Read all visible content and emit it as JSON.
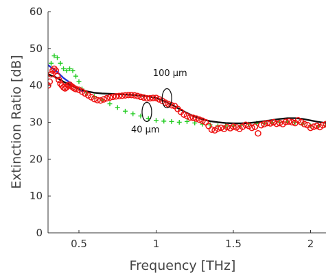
{
  "chart_data": {
    "type": "scatter",
    "title": "",
    "xlabel": "Frequency [THz]",
    "ylabel": "Extinction Ratio [dB]",
    "xlim": [
      0.3,
      2.1
    ],
    "ylim": [
      0,
      60
    ],
    "x_ticks": [
      {
        "value": 0.5,
        "label": "0.5"
      },
      {
        "value": 1.0,
        "label": "1"
      },
      {
        "value": 1.5,
        "label": "1.5"
      },
      {
        "value": 2.0,
        "label": "2"
      }
    ],
    "y_ticks": [
      {
        "value": 0,
        "label": "0"
      },
      {
        "value": 10,
        "label": "10"
      },
      {
        "value": 20,
        "label": "20"
      },
      {
        "value": 30,
        "label": "30"
      },
      {
        "value": 40,
        "label": "40"
      },
      {
        "value": 50,
        "label": "50"
      },
      {
        "value": 60,
        "label": "60"
      }
    ],
    "grid": false,
    "series": [
      {
        "marker": "plus",
        "color": "#22cc22",
        "x": [
          0.3,
          0.32,
          0.34,
          0.36,
          0.38,
          0.4,
          0.42,
          0.44,
          0.46,
          0.48,
          0.5,
          0.52,
          0.55,
          0.6,
          0.65,
          0.7,
          0.75,
          0.8,
          0.85,
          0.9,
          0.95,
          1.0,
          1.05,
          1.1,
          1.15,
          1.2,
          1.25,
          1.3,
          1.35,
          1.4,
          1.45,
          1.5,
          1.55,
          1.6,
          1.65,
          1.7,
          1.75,
          1.8,
          1.85,
          1.9,
          1.95,
          2.0,
          2.05,
          2.1
        ],
        "y": [
          43.0,
          46.0,
          48.0,
          47.5,
          46.0,
          44.5,
          44.0,
          44.5,
          44.0,
          42.5,
          41.0,
          39.0,
          38.0,
          37.0,
          36.0,
          35.0,
          34.0,
          33.0,
          32.3,
          31.7,
          31.0,
          30.5,
          30.3,
          30.2,
          30.0,
          30.2,
          29.8,
          29.5,
          29.3,
          29.0,
          29.0,
          29.0,
          29.2,
          29.5,
          29.7,
          29.7,
          29.9,
          30.0,
          30.1,
          30.0,
          29.5,
          29.0,
          29.0,
          29.2
        ]
      },
      {
        "marker": "line",
        "color": "#2233dd",
        "x": [
          0.3,
          0.35,
          0.4,
          0.45,
          0.5,
          0.53
        ],
        "y": [
          45.5,
          44.0,
          42.0,
          40.5,
          39.0,
          38.2
        ]
      },
      {
        "marker": "line",
        "color": "#111111",
        "x": [
          0.3,
          0.35,
          0.4,
          0.45,
          0.5,
          0.55,
          0.6,
          0.65,
          0.7,
          0.75,
          0.8,
          0.85,
          0.9,
          0.95,
          1.0,
          1.05,
          1.1,
          1.15,
          1.2,
          1.25,
          1.3,
          1.35,
          1.4,
          1.45,
          1.5,
          1.55,
          1.6,
          1.65,
          1.7,
          1.75,
          1.8,
          1.85,
          1.9,
          1.95,
          2.0,
          2.05,
          2.1
        ],
        "y": [
          43.0,
          42.2,
          41.0,
          40.0,
          39.0,
          38.4,
          38.0,
          37.8,
          37.7,
          37.6,
          37.5,
          37.4,
          37.2,
          37.0,
          36.6,
          35.8,
          34.8,
          33.6,
          32.5,
          31.5,
          30.8,
          30.3,
          30.0,
          29.8,
          29.7,
          29.7,
          29.8,
          30.0,
          30.3,
          30.6,
          30.9,
          31.1,
          31.1,
          30.9,
          30.5,
          30.1,
          29.8
        ]
      },
      {
        "marker": "circle",
        "color": "#ee1111",
        "x": [
          0.3,
          0.31,
          0.32,
          0.33,
          0.34,
          0.35,
          0.36,
          0.37,
          0.38,
          0.39,
          0.4,
          0.41,
          0.42,
          0.43,
          0.44,
          0.45,
          0.46,
          0.47,
          0.48,
          0.5,
          0.52,
          0.54,
          0.56,
          0.58,
          0.6,
          0.62,
          0.64,
          0.66,
          0.68,
          0.7,
          0.72,
          0.74,
          0.76,
          0.78,
          0.8,
          0.82,
          0.84,
          0.86,
          0.88,
          0.9,
          0.92,
          0.94,
          0.96,
          0.98,
          1.0,
          1.02,
          1.04,
          1.06,
          1.08,
          1.1,
          1.12,
          1.14,
          1.16,
          1.18,
          1.2,
          1.22,
          1.24,
          1.26,
          1.28,
          1.3,
          1.32,
          1.34,
          1.36,
          1.38,
          1.4,
          1.42,
          1.44,
          1.46,
          1.48,
          1.5,
          1.52,
          1.54,
          1.56,
          1.58,
          1.6,
          1.62,
          1.64,
          1.66,
          1.68,
          1.7,
          1.72,
          1.74,
          1.76,
          1.78,
          1.8,
          1.82,
          1.84,
          1.86,
          1.88,
          1.9,
          1.92,
          1.94,
          1.96,
          1.98,
          2.0,
          2.02,
          2.04,
          2.06,
          2.08,
          2.1
        ],
        "y": [
          40.0,
          41.0,
          43.0,
          44.0,
          44.5,
          44.0,
          42.5,
          41.5,
          40.5,
          40.0,
          39.5,
          39.2,
          39.5,
          40.0,
          40.2,
          39.8,
          39.5,
          39.2,
          39.0,
          38.8,
          38.3,
          37.8,
          37.3,
          36.8,
          36.3,
          36.0,
          35.9,
          36.2,
          36.5,
          36.7,
          36.9,
          37.0,
          37.1,
          37.2,
          37.3,
          37.4,
          37.4,
          37.3,
          37.1,
          36.9,
          36.7,
          36.5,
          36.5,
          36.6,
          36.6,
          36.2,
          35.8,
          35.3,
          34.9,
          34.6,
          34.4,
          33.6,
          32.8,
          32.1,
          31.7,
          31.3,
          31.2,
          31.0,
          30.7,
          30.4,
          30.0,
          29.0,
          28.0,
          27.8,
          28.3,
          28.5,
          28.2,
          28.7,
          28.4,
          28.8,
          28.6,
          28.2,
          28.8,
          29.3,
          29.0,
          28.5,
          28.8,
          27.0,
          29.2,
          29.5,
          29.8,
          29.7,
          30.0,
          29.6,
          29.8,
          29.5,
          30.1,
          30.2,
          30.0,
          29.8,
          30.5,
          30.0,
          29.5,
          29.2,
          28.5,
          28.8,
          29.0,
          28.7,
          29.2,
          29.5
        ]
      }
    ],
    "annotations": [
      {
        "text": "100 µm",
        "x": 1.09,
        "y": 42.5,
        "ellipse_center": [
          1.07,
          36.5
        ]
      },
      {
        "text": "40 µm",
        "x": 0.93,
        "y": 27.2,
        "ellipse_center": [
          0.94,
          32.8
        ]
      }
    ]
  }
}
